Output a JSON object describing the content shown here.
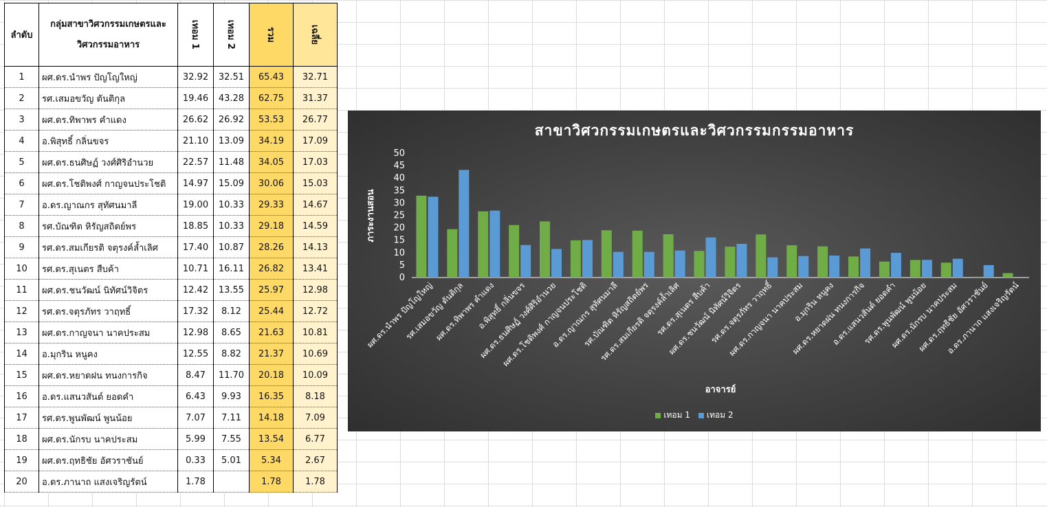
{
  "table": {
    "headers": {
      "index": "ลำดับ",
      "name_line1": "กลุ่มสาขาวิศวกรรมเกษตรและ",
      "name_line2": "วิศวกรรมอาหาร",
      "term1": "เทอม 1",
      "term2": "เทอม 2",
      "sum": "รวม",
      "avg": "เฉลี่ย"
    },
    "rows": [
      {
        "idx": "1",
        "name": "ผศ.ดร.นำพร  ปัญโญใหญ่",
        "t1": "32.92",
        "t2": "32.51",
        "sum": "65.43",
        "avg": "32.71"
      },
      {
        "idx": "2",
        "name": "รศ.เสมอขวัญ  ตันติกุล",
        "t1": "19.46",
        "t2": "43.28",
        "sum": "62.75",
        "avg": "31.37"
      },
      {
        "idx": "3",
        "name": "ผศ.ดร.ทิพาพร  คำแดง",
        "t1": "26.62",
        "t2": "26.92",
        "sum": "53.53",
        "avg": "26.77"
      },
      {
        "idx": "4",
        "name": "อ.พิสุทธิ์  กลิ่นขจร",
        "t1": "21.10",
        "t2": "13.09",
        "sum": "34.19",
        "avg": "17.09"
      },
      {
        "idx": "5",
        "name": "ผศ.ดร.ธนศิษฏ์  วงศ์ศิริอำนวย",
        "t1": "22.57",
        "t2": "11.48",
        "sum": "34.05",
        "avg": "17.03"
      },
      {
        "idx": "6",
        "name": "ผศ.ดร.โชติพงศ์  กาญจนประโชติ",
        "t1": "14.97",
        "t2": "15.09",
        "sum": "30.06",
        "avg": "15.03"
      },
      {
        "idx": "7",
        "name": "อ.ดร.ญาณกร สุทัศนมาลี",
        "t1": "19.00",
        "t2": "10.33",
        "sum": "29.33",
        "avg": "14.67"
      },
      {
        "idx": "8",
        "name": "รศ.บัณฑิต  หิรัญสถิตย์พร",
        "t1": "18.85",
        "t2": "10.33",
        "sum": "29.18",
        "avg": "14.59"
      },
      {
        "idx": "9",
        "name": "รศ.ดร.สมเกียรติ จตุรงค์ล้ำเลิศ",
        "t1": "17.40",
        "t2": "10.87",
        "sum": "28.26",
        "avg": "14.13"
      },
      {
        "idx": "10",
        "name": "รศ.ดร.สุเนตร สืบค้า",
        "t1": "10.71",
        "t2": "16.11",
        "sum": "26.82",
        "avg": "13.41"
      },
      {
        "idx": "11",
        "name": "ผศ.ดร.ชนวัฒน์  นิทัศน์วิจิตร",
        "t1": "12.42",
        "t2": "13.55",
        "sum": "25.97",
        "avg": "12.98"
      },
      {
        "idx": "12",
        "name": "รศ.ดร.จตุรภัทร  วาฤทธิ์",
        "t1": "17.32",
        "t2": "8.12",
        "sum": "25.44",
        "avg": "12.72"
      },
      {
        "idx": "13",
        "name": "ผศ.ดร.กาญจนา นาคประสม",
        "t1": "12.98",
        "t2": "8.65",
        "sum": "21.63",
        "avg": "10.81"
      },
      {
        "idx": "14",
        "name": "อ.มุกริน  หนูคง",
        "t1": "12.55",
        "t2": "8.82",
        "sum": "21.37",
        "avg": "10.69"
      },
      {
        "idx": "15",
        "name": "ผศ.ดร.หยาดฝน ทนงการกิจ",
        "t1": "8.47",
        "t2": "11.70",
        "sum": "20.18",
        "avg": "10.09"
      },
      {
        "idx": "16",
        "name": "อ.ดร.แสนวสันต์ ยอดคำ",
        "t1": "6.43",
        "t2": "9.93",
        "sum": "16.35",
        "avg": "8.18"
      },
      {
        "idx": "17",
        "name": "รศ.ดร.พูนพัฒน์  พูนน้อย",
        "t1": "7.07",
        "t2": "7.11",
        "sum": "14.18",
        "avg": "7.09"
      },
      {
        "idx": "18",
        "name": "ผศ.ดร.นักรบ  นาคประสม",
        "t1": "5.99",
        "t2": "7.55",
        "sum": "13.54",
        "avg": "6.77"
      },
      {
        "idx": "19",
        "name": "ผศ.ดร.ฤทธิชัย อัศวราชันย์",
        "t1": "0.33",
        "t2": "5.01",
        "sum": "5.34",
        "avg": "2.67"
      },
      {
        "idx": "20",
        "name": "อ.ดร.ภานาถ  แสงเจริญรัตน์",
        "t1": "1.78",
        "t2": "",
        "sum": "1.78",
        "avg": "1.78"
      }
    ]
  },
  "chart_data": {
    "type": "bar",
    "title": "สาขาวิศวกรรมเกษตรและวิศวกรรมกรรมอาหาร",
    "xlabel": "อาจารย์",
    "ylabel": "ภาระงานสอน",
    "ylim": [
      0,
      50
    ],
    "yticks": [
      0,
      5,
      10,
      15,
      20,
      25,
      30,
      35,
      40,
      45,
      50
    ],
    "grid": false,
    "legend_position": "bottom",
    "categories": [
      "ผศ.ดร.นำพร  ปัญโญใหญ่",
      "รศ.เสมอขวัญ  ตันติกุล",
      "ผศ.ดร.ทิพาพร  คำแดง",
      "อ.พิสุทธิ์  กลิ่นขจร",
      "ผศ.ดร.ธนศิษฏ์  วงศ์ศิริอำนวย",
      "ผศ.ดร.โชติพงศ์  กาญจนประโชติ",
      "อ.ดร.ญาณกร สุทัศนมาลี",
      "รศ.บัณฑิต  หิรัญสถิตย์พร",
      "รศ.ดร.สมเกียรติ จตุรงค์ล้ำเลิศ",
      "รศ.ดร.สุเนตร สืบค้า",
      "ผศ.ดร.ชนวัฒน์  นิทัศน์วิจิตร",
      "รศ.ดร.จตุรภัทร  วาฤทธิ์",
      "ผศ.ดร.กาญจนา นาคประสม",
      "อ.มุกริน  หนูคง",
      "ผศ.ดร.หยาดฝน ทนงการกิจ",
      "อ.ดร.แสนวสันต์ ยอดคำ",
      "รศ.ดร.พูนพัฒน์  พูนน้อย",
      "ผศ.ดร.นักรบ  นาคประสม",
      "ผศ.ดร.ฤทธิชัย อัศวราชันย์",
      "อ.ดร.ภานาถ  แสงเจริญรัตน์"
    ],
    "series": [
      {
        "name": "เทอม 1",
        "color": "#70ad47",
        "values": [
          32.92,
          19.46,
          26.62,
          21.1,
          22.57,
          14.97,
          19.0,
          18.85,
          17.4,
          10.71,
          12.42,
          17.32,
          12.98,
          12.55,
          8.47,
          6.43,
          7.07,
          5.99,
          0.33,
          1.78
        ]
      },
      {
        "name": "เทอม 2",
        "color": "#5b9bd5",
        "values": [
          32.51,
          43.28,
          26.92,
          13.09,
          11.48,
          15.09,
          10.33,
          10.33,
          10.87,
          16.11,
          13.55,
          8.12,
          8.65,
          8.82,
          11.7,
          9.93,
          7.11,
          7.55,
          5.01,
          0
        ]
      }
    ]
  }
}
